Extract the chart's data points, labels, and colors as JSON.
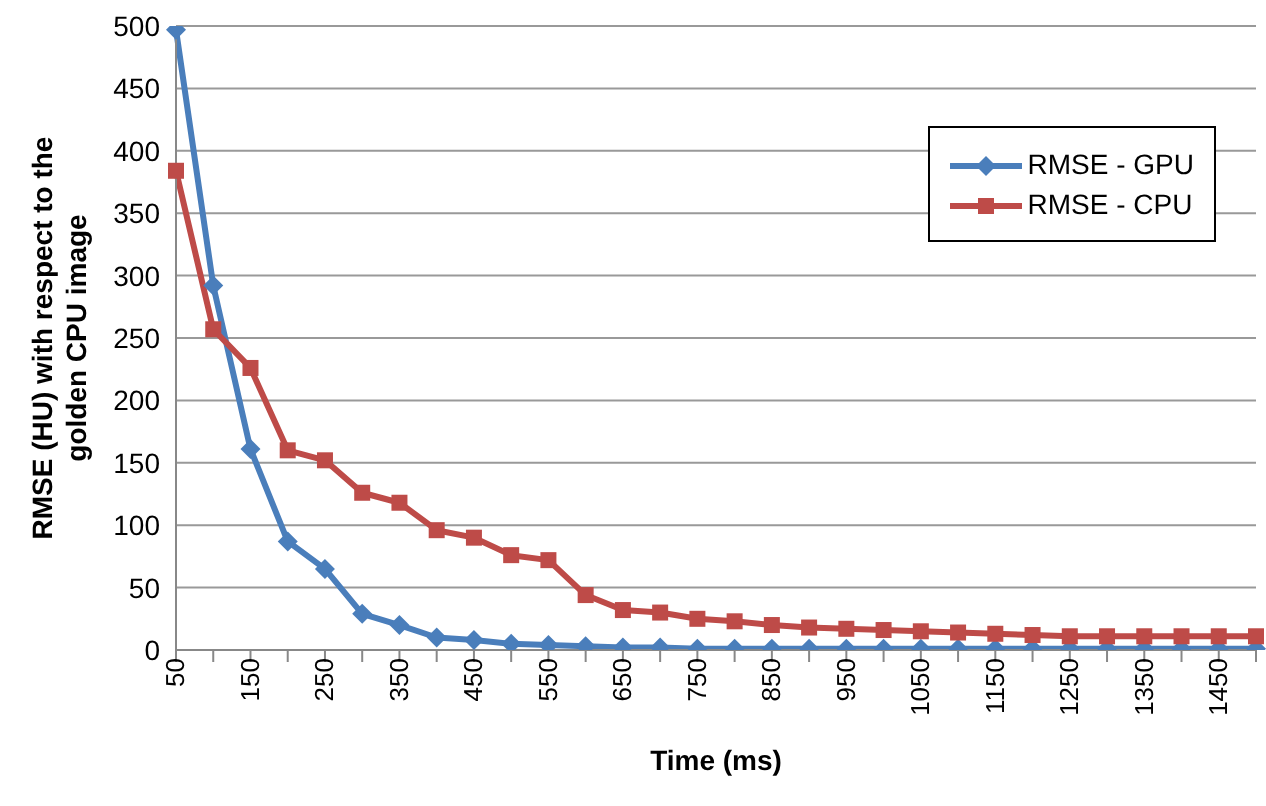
{
  "chart_data": {
    "type": "line",
    "xlabel": "Time (ms)",
    "ylabel": "RMSE (HU) with respect to the golden CPU image",
    "categories": [
      "50",
      null,
      "150",
      null,
      "250",
      null,
      "350",
      null,
      "450",
      null,
      "550",
      null,
      "650",
      null,
      "750",
      null,
      "850",
      null,
      "950",
      null,
      "1050",
      null,
      "1150",
      null,
      "1250",
      null,
      "1350",
      null,
      "1450",
      null
    ],
    "series": [
      {
        "name": "RMSE - GPU",
        "color": "#4a7ebb",
        "marker": "diamond",
        "values": [
          497,
          292,
          161,
          87,
          65,
          29,
          20,
          10,
          8,
          5,
          4,
          3,
          2,
          2,
          1,
          1,
          1,
          1,
          1,
          1,
          1,
          1,
          1,
          1,
          1,
          1,
          1,
          1,
          1,
          1
        ]
      },
      {
        "name": "RMSE - CPU",
        "color": "#be4b48",
        "marker": "square",
        "values": [
          384,
          257,
          226,
          160,
          152,
          126,
          118,
          96,
          90,
          76,
          72,
          44,
          32,
          30,
          25,
          23,
          20,
          18,
          17,
          16,
          15,
          14,
          13,
          12,
          11,
          11,
          11,
          11,
          11,
          11
        ]
      }
    ],
    "ylim": [
      0,
      500
    ],
    "yticks": [
      0,
      50,
      100,
      150,
      200,
      250,
      300,
      350,
      400,
      450,
      500
    ],
    "grid": "y",
    "legend": "top right",
    "line_style": "solid"
  }
}
